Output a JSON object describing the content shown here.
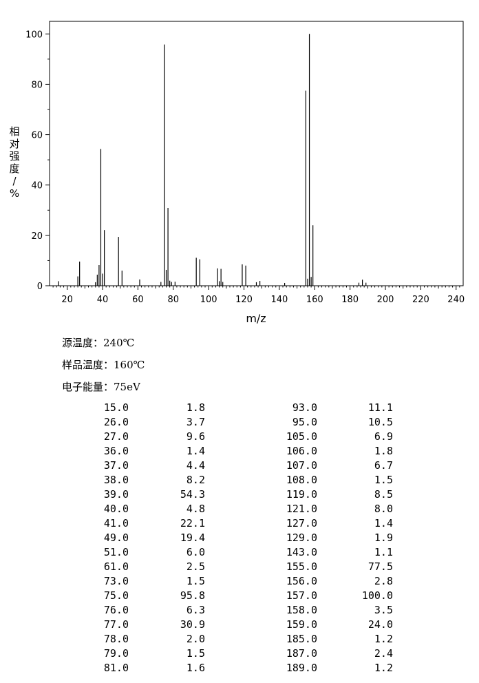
{
  "chart_data": {
    "type": "bar",
    "xlabel": "m/z",
    "ylabel": "相对强度/%",
    "xlim": [
      10,
      244
    ],
    "ylim": [
      0,
      105
    ],
    "x_ticks": [
      20,
      40,
      60,
      80,
      100,
      120,
      140,
      160,
      180,
      200,
      220,
      240
    ],
    "y_ticks": [
      0,
      20,
      40,
      60,
      80,
      100
    ],
    "grid": false,
    "series": [
      {
        "x": [
          15,
          26,
          27,
          36,
          37,
          38,
          39,
          40,
          41,
          49,
          51,
          61,
          73,
          75,
          76,
          77,
          78,
          79,
          81,
          93,
          95,
          105,
          106,
          107,
          108,
          119,
          121,
          127,
          129,
          143,
          155,
          156,
          157,
          158,
          159,
          185,
          187,
          189
        ],
        "values": [
          1.8,
          3.7,
          9.6,
          1.4,
          4.4,
          8.2,
          54.3,
          4.8,
          22.1,
          19.4,
          6.0,
          2.5,
          1.5,
          95.8,
          6.3,
          30.9,
          2.0,
          1.5,
          1.6,
          11.1,
          10.5,
          6.9,
          1.8,
          6.7,
          1.5,
          8.5,
          8.0,
          1.4,
          1.9,
          1.1,
          77.5,
          2.8,
          100.0,
          3.5,
          24.0,
          1.2,
          2.4,
          1.2
        ]
      }
    ]
  },
  "conditions": {
    "source_temp": "源温度：240℃",
    "sample_temp": "样品温度：160℃",
    "electron_energy": "电子能量：75eV"
  },
  "peak_table": [
    [
      "15.0",
      "1.8",
      "93.0",
      "11.1"
    ],
    [
      "26.0",
      "3.7",
      "95.0",
      "10.5"
    ],
    [
      "27.0",
      "9.6",
      "105.0",
      "6.9"
    ],
    [
      "36.0",
      "1.4",
      "106.0",
      "1.8"
    ],
    [
      "37.0",
      "4.4",
      "107.0",
      "6.7"
    ],
    [
      "38.0",
      "8.2",
      "108.0",
      "1.5"
    ],
    [
      "39.0",
      "54.3",
      "119.0",
      "8.5"
    ],
    [
      "40.0",
      "4.8",
      "121.0",
      "8.0"
    ],
    [
      "41.0",
      "22.1",
      "127.0",
      "1.4"
    ],
    [
      "49.0",
      "19.4",
      "129.0",
      "1.9"
    ],
    [
      "51.0",
      "6.0",
      "143.0",
      "1.1"
    ],
    [
      "61.0",
      "2.5",
      "155.0",
      "77.5"
    ],
    [
      "73.0",
      "1.5",
      "156.0",
      "2.8"
    ],
    [
      "75.0",
      "95.8",
      "157.0",
      "100.0"
    ],
    [
      "76.0",
      "6.3",
      "158.0",
      "3.5"
    ],
    [
      "77.0",
      "30.9",
      "159.0",
      "24.0"
    ],
    [
      "78.0",
      "2.0",
      "185.0",
      "1.2"
    ],
    [
      "79.0",
      "1.5",
      "187.0",
      "2.4"
    ],
    [
      "81.0",
      "1.6",
      "189.0",
      "1.2"
    ]
  ]
}
